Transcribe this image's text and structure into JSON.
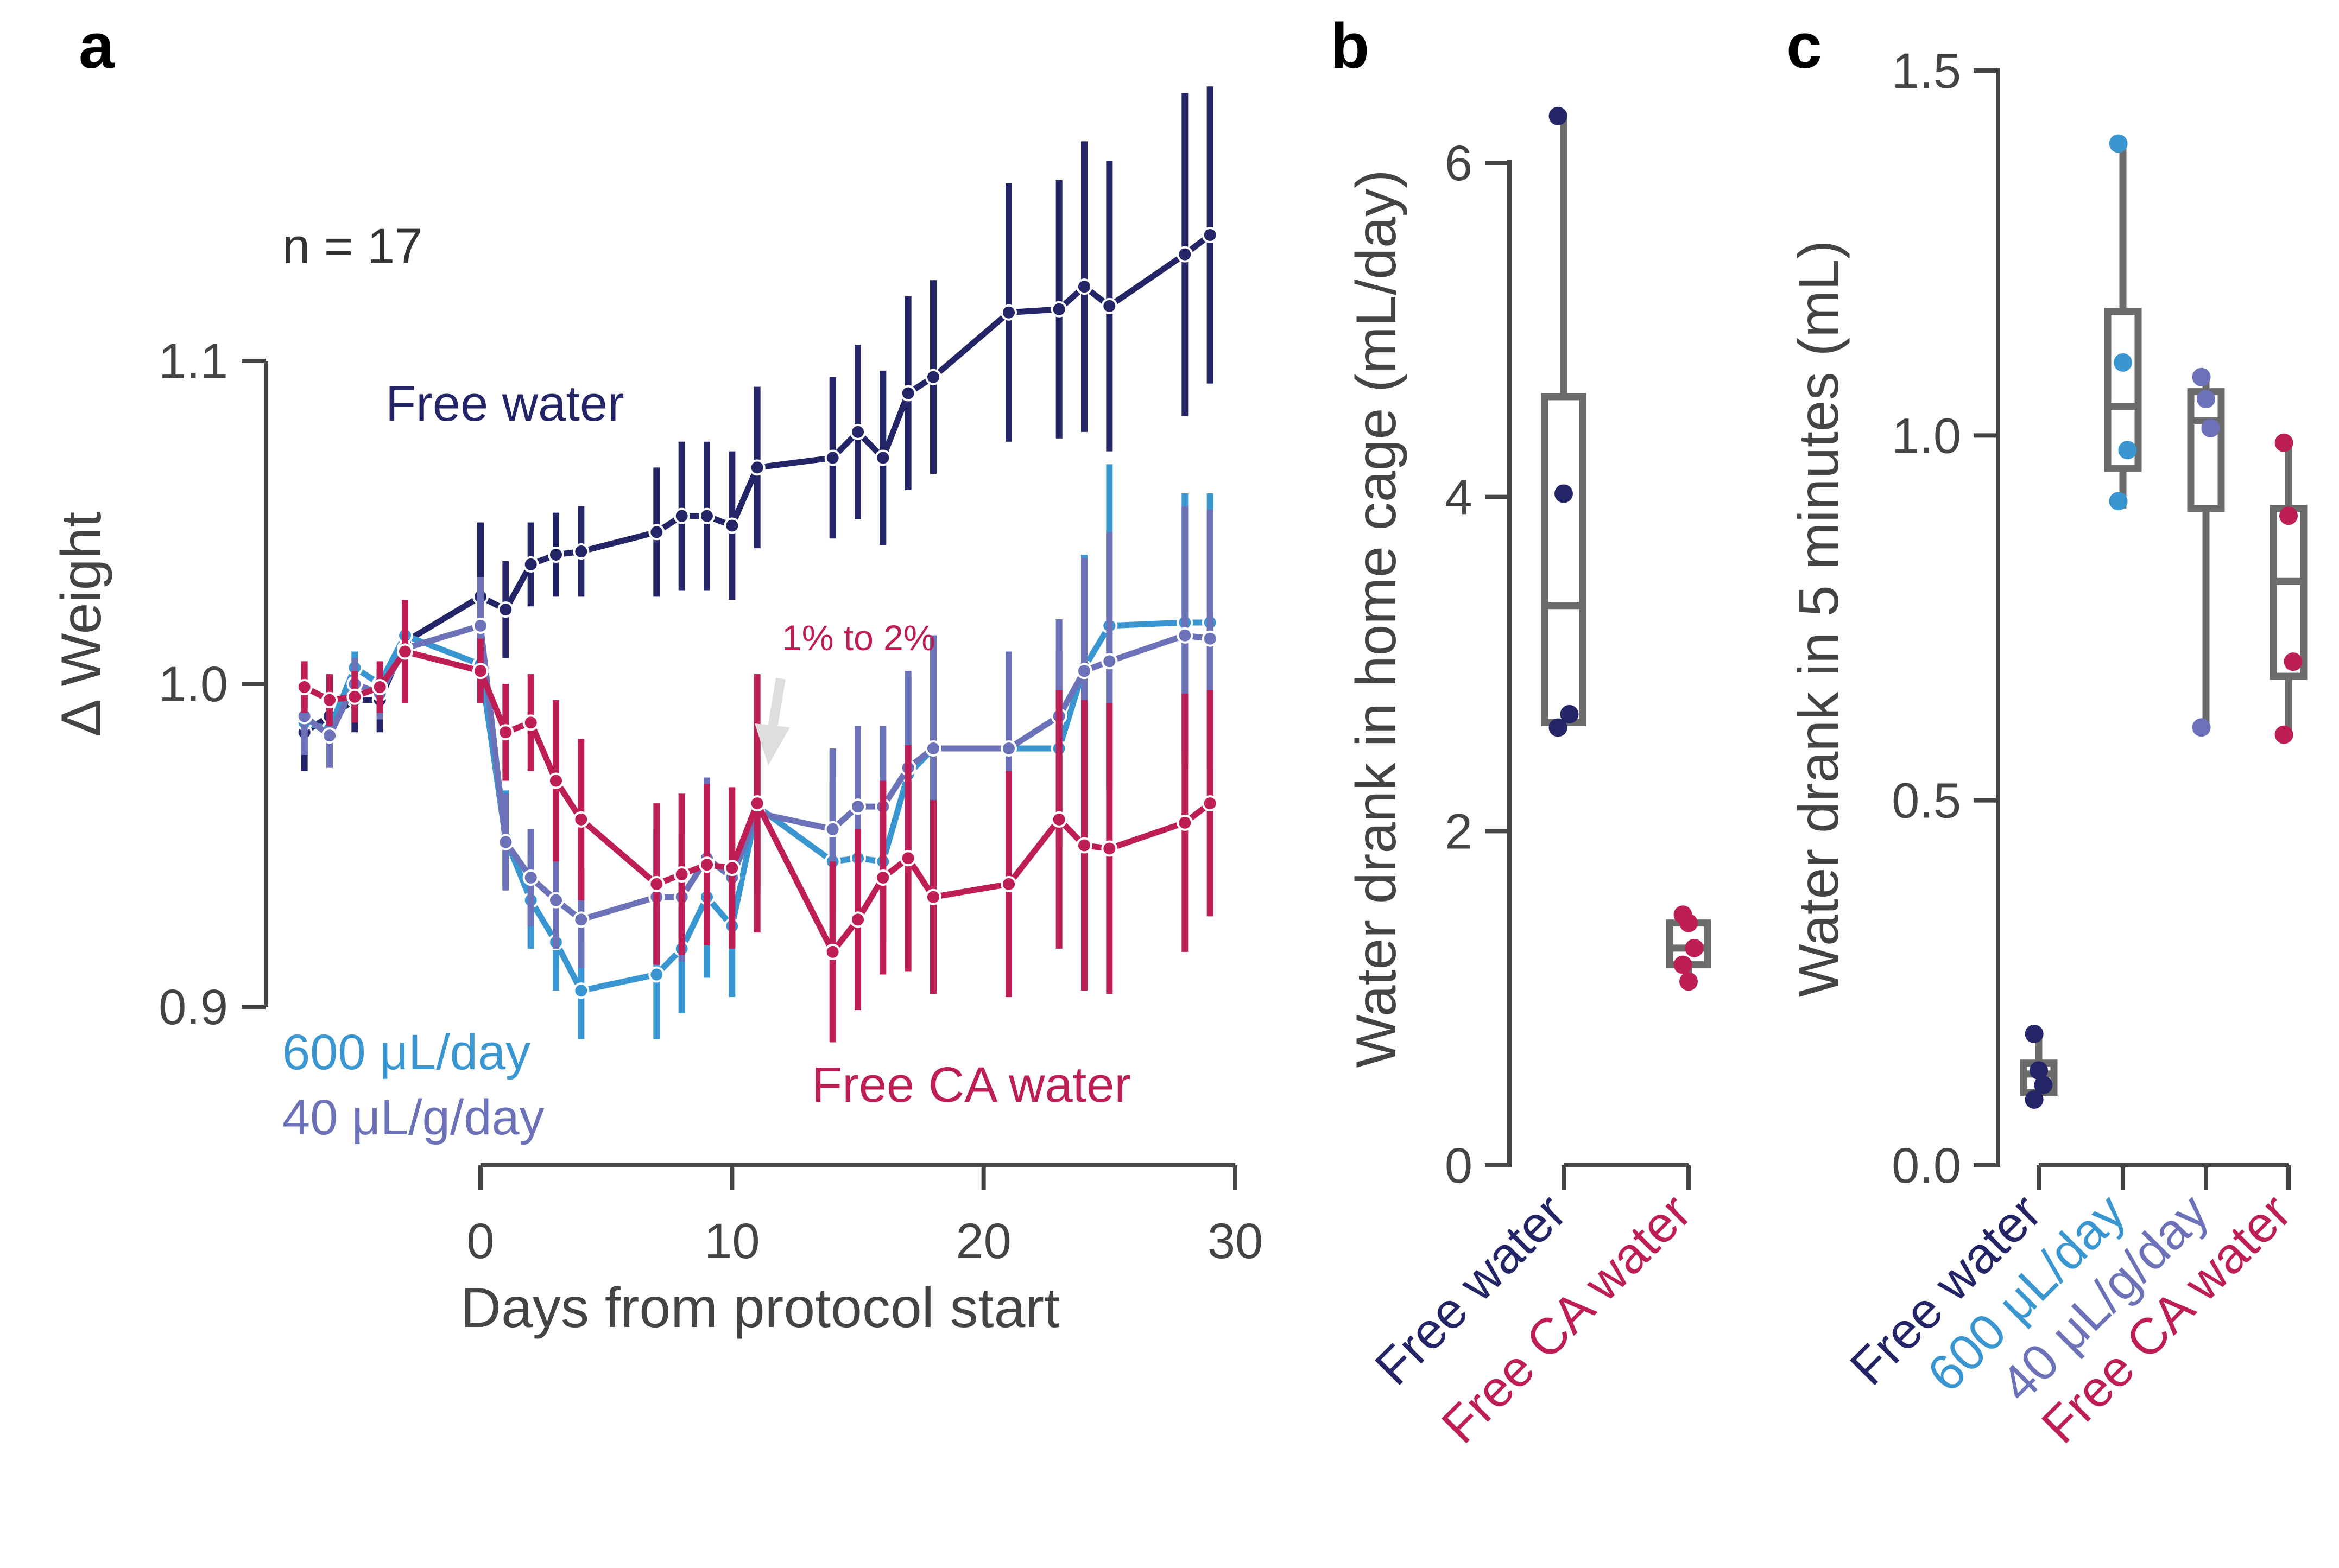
{
  "colors": {
    "free_water": "#232567",
    "ul_600": "#3996d1",
    "ul_40": "#6c72b8",
    "ca_water": "#be1e56",
    "axis": "#444444",
    "box": "#6b6b6b",
    "arrow": "#dedede"
  },
  "chart_data": [
    {
      "panel": "a",
      "type": "line",
      "xlabel": "Days from protocol start",
      "ylabel": "Δ Weight",
      "xlim": [
        -7.5,
        30
      ],
      "ylim": [
        0.85,
        1.15
      ],
      "xticks": [
        "0",
        "10",
        "20",
        "30"
      ],
      "yticks": [
        "0.9",
        "1.0",
        "1.1"
      ],
      "grid": false,
      "annotations": {
        "n": "n = 17",
        "switch": "1% to 2%",
        "switch_day": 11.5
      },
      "series": [
        {
          "name": "Free water",
          "color_key": "free_water",
          "x": [
            -7,
            -6,
            -5,
            -4,
            -3,
            0,
            1,
            2,
            3,
            4,
            7,
            8,
            9,
            10,
            11,
            14,
            15,
            16,
            17,
            18,
            21,
            23,
            24,
            25,
            28,
            29
          ],
          "y": [
            0.985,
            0.99,
            0.995,
            0.995,
            1.013,
            1.027,
            1.023,
            1.037,
            1.04,
            1.041,
            1.047,
            1.052,
            1.052,
            1.049,
            1.067,
            1.07,
            1.078,
            1.07,
            1.09,
            1.095,
            1.115,
            1.116,
            1.123,
            1.117,
            1.133,
            1.139
          ],
          "err": [
            0.012,
            0.01,
            0.01,
            0.01,
            0.01,
            0.023,
            0.015,
            0.013,
            0.013,
            0.014,
            0.02,
            0.023,
            0.023,
            0.023,
            0.025,
            0.025,
            0.027,
            0.027,
            0.03,
            0.03,
            0.04,
            0.04,
            0.045,
            0.045,
            0.05,
            0.046
          ]
        },
        {
          "name": "600 μL/day",
          "color_key": "ul_600",
          "x": [
            -7,
            -6,
            -5,
            -4,
            -3,
            0,
            1,
            2,
            3,
            4,
            7,
            8,
            9,
            10,
            11,
            14,
            15,
            16,
            17,
            18,
            21,
            23,
            24,
            25,
            28,
            29
          ],
          "y": [
            0.988,
            0.986,
            1.005,
            1.0,
            1.015,
            1.006,
            0.952,
            0.933,
            0.92,
            0.905,
            0.91,
            0.918,
            0.934,
            0.925,
            0.962,
            0.945,
            0.946,
            0.945,
            0.972,
            0.98,
            0.98,
            0.98,
            1.005,
            1.018,
            1.019,
            1.019
          ],
          "err": [
            0.01,
            0.01,
            0.005,
            0.005,
            0.008,
            0.01,
            0.015,
            0.015,
            0.015,
            0.015,
            0.02,
            0.02,
            0.025,
            0.022,
            0.025,
            0.025,
            0.025,
            0.025,
            0.03,
            0.035,
            0.03,
            0.03,
            0.035,
            0.05,
            0.04,
            0.04
          ]
        },
        {
          "name": "40 μL/g/day",
          "color_key": "ul_40",
          "x": [
            -7,
            -6,
            -5,
            -4,
            -3,
            0,
            1,
            2,
            3,
            4,
            7,
            8,
            9,
            10,
            11,
            14,
            15,
            16,
            17,
            18,
            21,
            23,
            24,
            25,
            28,
            29
          ],
          "y": [
            0.99,
            0.984,
            1.0,
            0.997,
            1.011,
            1.018,
            0.951,
            0.94,
            0.933,
            0.927,
            0.934,
            0.934,
            0.946,
            0.94,
            0.96,
            0.955,
            0.962,
            0.962,
            0.974,
            0.98,
            0.98,
            0.99,
            1.004,
            1.007,
            1.015,
            1.014
          ],
          "err": [
            0.012,
            0.01,
            0.008,
            0.008,
            0.01,
            0.015,
            0.015,
            0.015,
            0.015,
            0.015,
            0.02,
            0.02,
            0.025,
            0.022,
            0.025,
            0.025,
            0.025,
            0.025,
            0.03,
            0.035,
            0.03,
            0.03,
            0.035,
            0.04,
            0.04,
            0.04
          ]
        },
        {
          "name": "Free CA water",
          "color_key": "ca_water",
          "x": [
            -7,
            -6,
            -5,
            -4,
            -3,
            0,
            1,
            2,
            3,
            4,
            7,
            8,
            9,
            10,
            11,
            14,
            15,
            16,
            17,
            18,
            21,
            23,
            24,
            25,
            28,
            29
          ],
          "y": [
            0.999,
            0.995,
            0.996,
            0.999,
            1.01,
            1.004,
            0.985,
            0.988,
            0.97,
            0.958,
            0.938,
            0.941,
            0.944,
            0.943,
            0.963,
            0.917,
            0.927,
            0.94,
            0.946,
            0.934,
            0.938,
            0.958,
            0.95,
            0.949,
            0.957,
            0.963
          ],
          "err": [
            0.008,
            0.008,
            0.008,
            0.008,
            0.016,
            0.01,
            0.015,
            0.015,
            0.025,
            0.025,
            0.025,
            0.025,
            0.025,
            0.025,
            0.04,
            0.028,
            0.028,
            0.03,
            0.035,
            0.03,
            0.035,
            0.04,
            0.045,
            0.045,
            0.04,
            0.035
          ]
        }
      ]
    },
    {
      "panel": "b",
      "type": "box",
      "ylabel": "Water drank in home cage (mL/day)",
      "ylim": [
        0,
        6.5
      ],
      "yticks": [
        "0",
        "2",
        "4",
        "6"
      ],
      "categories": [
        "Free water",
        "Free CA water"
      ],
      "boxes": [
        {
          "category": "Free water",
          "color_key": "free_water",
          "whislo": 2.6,
          "q1": 2.65,
          "med": 3.35,
          "q3": 4.6,
          "whishi": 6.3,
          "points": [
            6.28,
            4.02,
            2.7,
            2.62
          ]
        },
        {
          "category": "Free CA water",
          "color_key": "ca_water",
          "whislo": 1.1,
          "q1": 1.2,
          "med": 1.3,
          "q3": 1.45,
          "whishi": 1.5,
          "points": [
            1.5,
            1.45,
            1.3,
            1.2,
            1.1
          ]
        }
      ]
    },
    {
      "panel": "c",
      "type": "box",
      "ylabel": "Water drank in 5 minutes (mL)",
      "ylim": [
        0,
        1.5
      ],
      "yticks": [
        "0.0",
        "0.5",
        "1.0",
        "1.5"
      ],
      "categories": [
        "Free water",
        "600 μL/day",
        "40 μL/g/day",
        "Free CA water"
      ],
      "boxes": [
        {
          "category": "Free water",
          "color_key": "free_water",
          "whislo": 0.09,
          "q1": 0.1,
          "med": 0.125,
          "q3": 0.14,
          "whishi": 0.18,
          "points": [
            0.18,
            0.13,
            0.11,
            0.09
          ]
        },
        {
          "category": "600 μL/day",
          "color_key": "ul_600",
          "whislo": 0.9,
          "q1": 0.955,
          "med": 1.04,
          "q3": 1.17,
          "whishi": 1.4,
          "points": [
            1.4,
            1.1,
            0.98,
            0.91
          ]
        },
        {
          "category": "40 μL/g/day",
          "color_key": "ul_40",
          "whislo": 0.6,
          "q1": 0.9,
          "med": 1.02,
          "q3": 1.06,
          "whishi": 1.08,
          "points": [
            1.08,
            1.05,
            1.01,
            0.6
          ]
        },
        {
          "category": "Free CA water",
          "color_key": "ca_water",
          "whislo": 0.59,
          "q1": 0.67,
          "med": 0.8,
          "q3": 0.9,
          "whishi": 0.99,
          "points": [
            0.99,
            0.89,
            0.69,
            0.59
          ]
        }
      ]
    }
  ]
}
